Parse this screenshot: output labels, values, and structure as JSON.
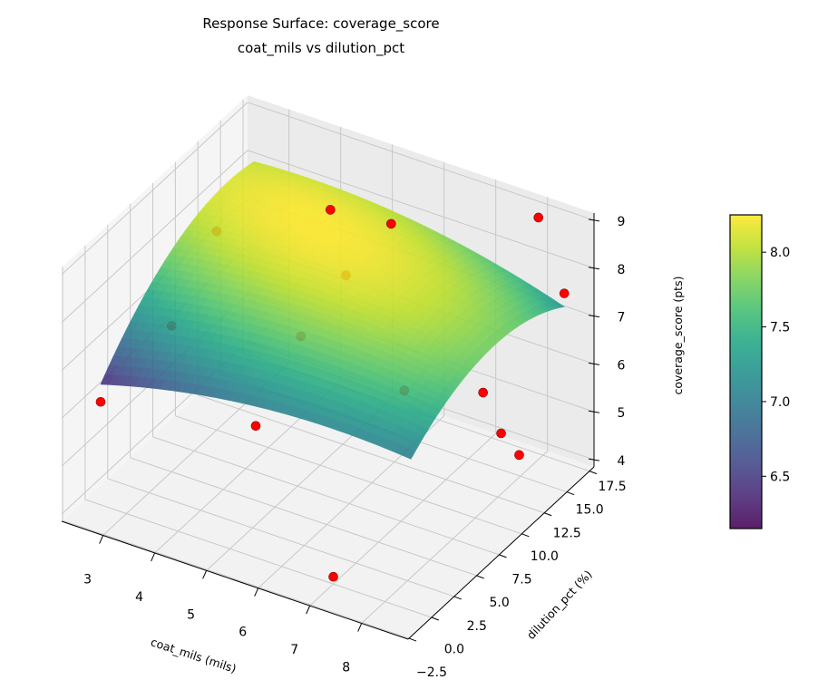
{
  "chart_data": {
    "type": "surface3d",
    "title": "Response Surface: coverage_score",
    "subtitle": "coat_mils vs dilution_pct",
    "xlabel": "coat_mils (mils)",
    "ylabel": "dilution_pct (%)",
    "zlabel": "coverage_score (pts)",
    "xlim": [
      2.2,
      8.9
    ],
    "ylim": [
      -2.6,
      18.0
    ],
    "zlim": [
      3.85,
      9.15
    ],
    "xticks": [
      "3",
      "4",
      "5",
      "6",
      "7",
      "8"
    ],
    "yticks": [
      "−2.5",
      "0.0",
      "2.5",
      "5.0",
      "7.5",
      "10.0",
      "12.5",
      "15.0",
      "17.5"
    ],
    "zticks": [
      "4",
      "5",
      "6",
      "7",
      "8",
      "9"
    ],
    "grid": true,
    "colormap": "viridis",
    "surface": {
      "x_range": [
        2.5,
        8.5
      ],
      "y_range": [
        0,
        17
      ],
      "model": "z = 8.25 - 0.009*(y - (14 - 0.8*(x-2.5)))^2 - 0.03*(x-4.5)^2"
    },
    "points": [
      {
        "x": 2.5,
        "y": 0,
        "z": 6.0
      },
      {
        "x": 3.0,
        "y": 10,
        "z": 8.0
      },
      {
        "x": 3.0,
        "y": 5,
        "z": 6.9
      },
      {
        "x": 4.5,
        "y": 14,
        "z": 8.3
      },
      {
        "x": 5.5,
        "y": 15,
        "z": 8.2
      },
      {
        "x": 5.5,
        "y": 10,
        "z": 8.0
      },
      {
        "x": 5.5,
        "y": 5,
        "z": 7.6
      },
      {
        "x": 5.5,
        "y": 0,
        "z": 6.6
      },
      {
        "x": 7.5,
        "y": 5,
        "z": 7.2
      },
      {
        "x": 8.5,
        "y": 8,
        "z": 7.0
      },
      {
        "x": 8.0,
        "y": 17,
        "z": 8.9
      },
      {
        "x": 8.5,
        "y": 17,
        "z": 7.5
      },
      {
        "x": 8.5,
        "y": 10,
        "z": 5.8
      },
      {
        "x": 8.5,
        "y": 12,
        "z": 5.0
      },
      {
        "x": 7.0,
        "y": 0,
        "z": 4.0
      }
    ],
    "point_color": "#ff0000",
    "colorbar": {
      "range": [
        6.15,
        8.25
      ],
      "ticks": [
        6.5,
        7.0,
        7.5,
        8.0
      ],
      "tick_labels": [
        "6.5",
        "7.0",
        "7.5",
        "8.0"
      ]
    }
  }
}
